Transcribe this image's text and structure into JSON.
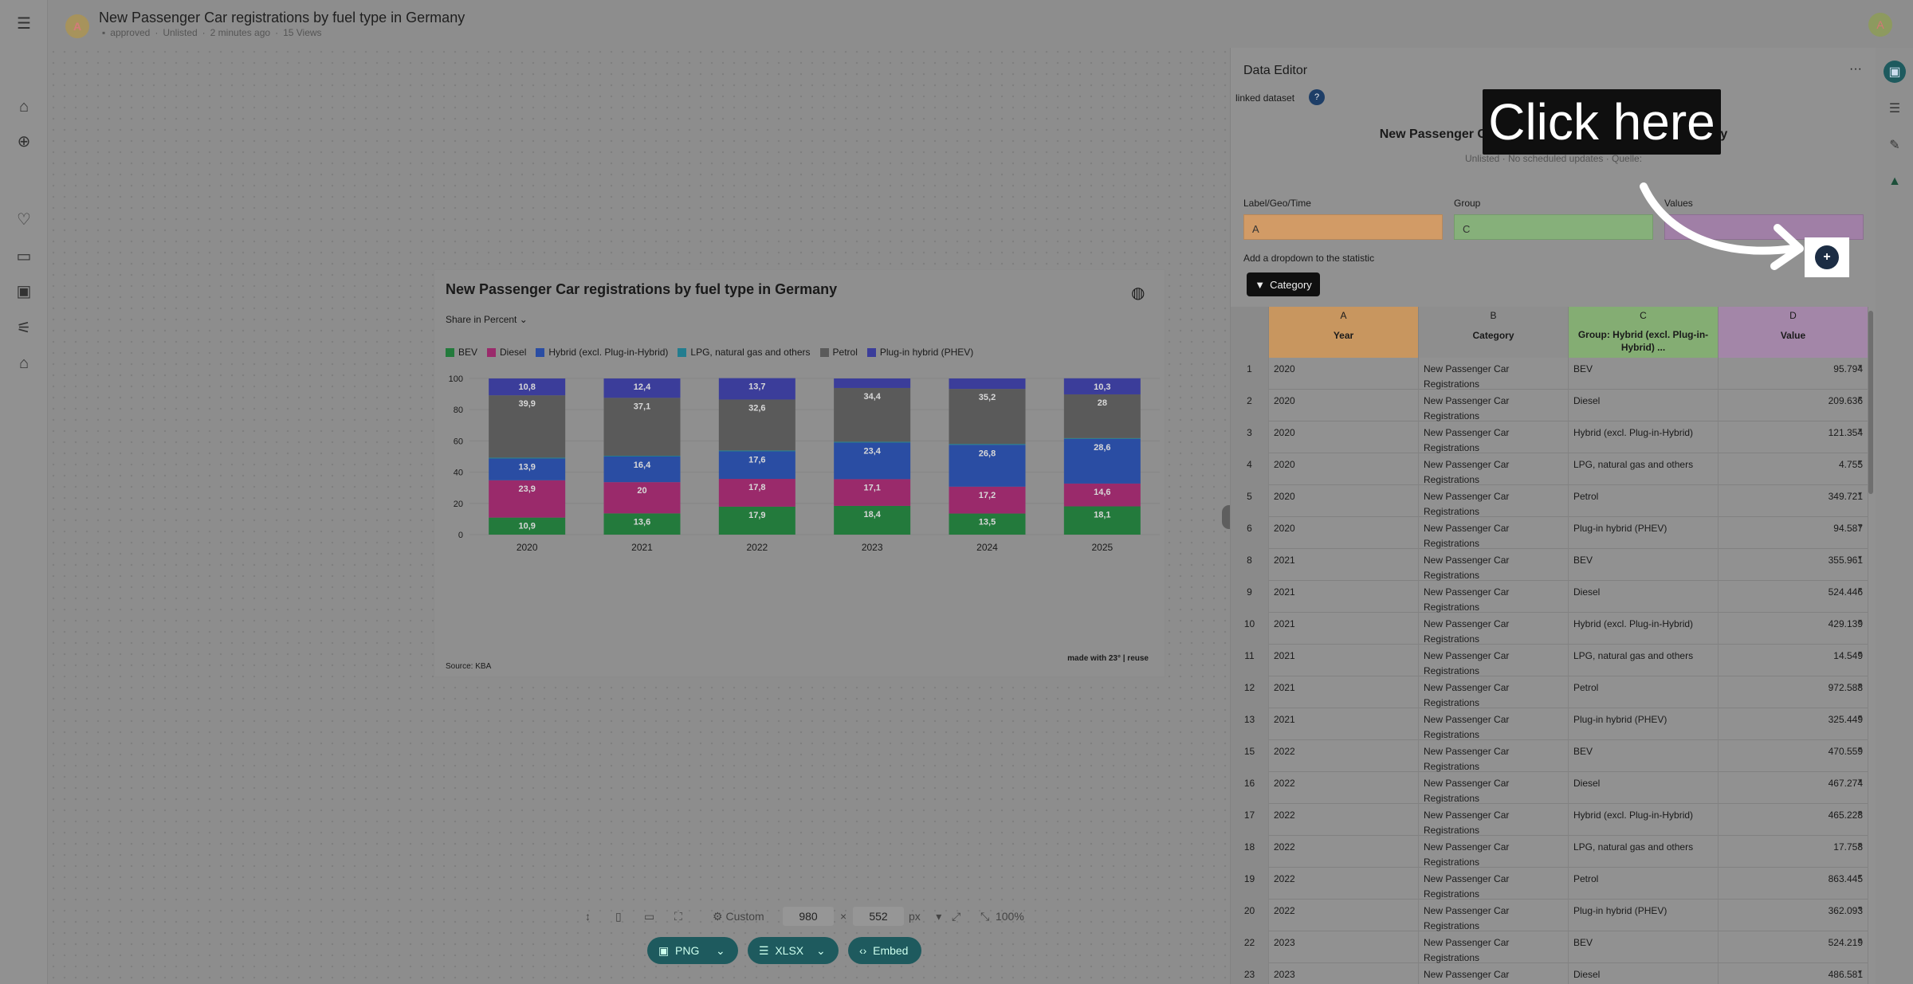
{
  "app": {
    "title": "New Passenger Car registrations by fuel type in Germany",
    "status": "approved",
    "visibility": "Unlisted",
    "updated": "2 minutes ago",
    "views": "15 Views",
    "avatar_letter": "A",
    "user_avatar_letter": "A"
  },
  "chart": {
    "title": "New Passenger Car registrations by fuel type in Germany",
    "display_select": "Share in Percent",
    "source": "Source: KBA",
    "made_with": "made with 23° | reuse"
  },
  "chart_data": {
    "type": "bar",
    "stacked": true,
    "categories": [
      "2020",
      "2021",
      "2022",
      "2023",
      "2024",
      "2025"
    ],
    "ylim": [
      0,
      100
    ],
    "yticks": [
      "0",
      "20",
      "40",
      "60",
      "80",
      "100"
    ],
    "legend_position": "top-left",
    "series": [
      {
        "name": "BEV",
        "color": "#237a3c",
        "values": [
          10.9,
          13.6,
          17.9,
          18.4,
          13.5,
          18.1
        ],
        "labels": [
          "10,9",
          "13,6",
          "17,9",
          "18,4",
          "13,5",
          "18,1"
        ]
      },
      {
        "name": "Diesel",
        "color": "#9a2a6b",
        "values": [
          23.9,
          20,
          17.8,
          17.1,
          17.2,
          14.6
        ],
        "labels": [
          "23,9",
          "20",
          "17,8",
          "17,1",
          "17,2",
          "14,6"
        ]
      },
      {
        "name": "Hybrid (excl. Plug-in-Hybrid)",
        "color": "#2a4da3",
        "values": [
          13.9,
          16.4,
          17.6,
          23.4,
          26.8,
          28.6
        ],
        "labels": [
          "13,9",
          "16,4",
          "17,6",
          "23,4",
          "26,8",
          "28,6"
        ]
      },
      {
        "name": "LPG, natural gas and others",
        "color": "#237d8f",
        "values": [
          0.6,
          0.5,
          0.6,
          0.6,
          0.6,
          0.5
        ],
        "labels": [
          "",
          "",
          "",
          "",
          "",
          ""
        ]
      },
      {
        "name": "Petrol",
        "color": "#5a5a5a",
        "values": [
          39.9,
          37.1,
          32.6,
          34.4,
          35.2,
          28
        ],
        "labels": [
          "39,9",
          "37,1",
          "32,6",
          "34,4",
          "35,2",
          "28"
        ]
      },
      {
        "name": "Plug-in hybrid (PHEV)",
        "color": "#3b3d9a",
        "values": [
          10.8,
          12.4,
          13.7,
          6.1,
          6.7,
          10.3
        ],
        "labels": [
          "10,8",
          "12,4",
          "13,7",
          "",
          "",
          "10,3"
        ]
      }
    ]
  },
  "toolbar": {
    "preset": "Custom",
    "width": "980",
    "times": "×",
    "height": "552",
    "unit": "px",
    "zoom": "100%",
    "export_png": "PNG",
    "export_xlsx": "XLSX",
    "embed": "Embed"
  },
  "editor": {
    "title": "Data Editor",
    "linked_label": "linked dataset",
    "help": "?",
    "dataset_title": "New Passenger Car registrations by fuel type in Germany",
    "dataset_sub": "Unlisted · No scheduled updates · Quelle:",
    "fields": [
      {
        "label": "Label/Geo/Time",
        "value": "A"
      },
      {
        "label": "Group",
        "value": "C"
      },
      {
        "label": "Values",
        "value": ""
      }
    ],
    "dropdown_label": "Add a dropdown to the statistic",
    "category_button": "Category",
    "col_letters": [
      "A",
      "B",
      "C",
      "D"
    ],
    "col_headers": [
      "Year",
      "Category",
      "Group: Hybrid (excl. Plug-in-Hybrid) ...",
      "Value"
    ],
    "rows": [
      {
        "n": "1",
        "year": "2020",
        "cat": "New Passenger Car Registrations",
        "group": "BEV",
        "value": "95.794"
      },
      {
        "n": "2",
        "year": "2020",
        "cat": "New Passenger Car Registrations",
        "group": "Diesel",
        "value": "209.636"
      },
      {
        "n": "3",
        "year": "2020",
        "cat": "New Passenger Car Registrations",
        "group": "Hybrid (excl. Plug-in-Hybrid)",
        "value": "121.354"
      },
      {
        "n": "4",
        "year": "2020",
        "cat": "New Passenger Car Registrations",
        "group": "LPG, natural gas and others",
        "value": "4.755"
      },
      {
        "n": "5",
        "year": "2020",
        "cat": "New Passenger Car Registrations",
        "group": "Petrol",
        "value": "349.721"
      },
      {
        "n": "6",
        "year": "2020",
        "cat": "New Passenger Car Registrations",
        "group": "Plug-in hybrid (PHEV)",
        "value": "94.587"
      },
      {
        "n": "8",
        "year": "2021",
        "cat": "New Passenger Car Registrations",
        "group": "BEV",
        "value": "355.961"
      },
      {
        "n": "9",
        "year": "2021",
        "cat": "New Passenger Car Registrations",
        "group": "Diesel",
        "value": "524.446"
      },
      {
        "n": "10",
        "year": "2021",
        "cat": "New Passenger Car Registrations",
        "group": "Hybrid (excl. Plug-in-Hybrid)",
        "value": "429.139"
      },
      {
        "n": "11",
        "year": "2021",
        "cat": "New Passenger Car Registrations",
        "group": "LPG, natural gas and others",
        "value": "14.549"
      },
      {
        "n": "12",
        "year": "2021",
        "cat": "New Passenger Car Registrations",
        "group": "Petrol",
        "value": "972.588"
      },
      {
        "n": "13",
        "year": "2021",
        "cat": "New Passenger Car Registrations",
        "group": "Plug-in hybrid (PHEV)",
        "value": "325.449"
      },
      {
        "n": "15",
        "year": "2022",
        "cat": "New Passenger Car Registrations",
        "group": "BEV",
        "value": "470.559"
      },
      {
        "n": "16",
        "year": "2022",
        "cat": "New Passenger Car Registrations",
        "group": "Diesel",
        "value": "467.274"
      },
      {
        "n": "17",
        "year": "2022",
        "cat": "New Passenger Car Registrations",
        "group": "Hybrid (excl. Plug-in-Hybrid)",
        "value": "465.228"
      },
      {
        "n": "18",
        "year": "2022",
        "cat": "New Passenger Car Registrations",
        "group": "LPG, natural gas and others",
        "value": "17.758"
      },
      {
        "n": "19",
        "year": "2022",
        "cat": "New Passenger Car Registrations",
        "group": "Petrol",
        "value": "863.445"
      },
      {
        "n": "20",
        "year": "2022",
        "cat": "New Passenger Car Registrations",
        "group": "Plug-in hybrid (PHEV)",
        "value": "362.093"
      },
      {
        "n": "22",
        "year": "2023",
        "cat": "New Passenger Car Registrations",
        "group": "BEV",
        "value": "524.219"
      },
      {
        "n": "23",
        "year": "2023",
        "cat": "New Passenger Car Registrations",
        "group": "Diesel",
        "value": "486.581"
      }
    ]
  },
  "callout": {
    "text": "Click here",
    "plus": "+"
  },
  "colors": {
    "label_field": "#d29b66",
    "group_field": "#86b07a",
    "values_field": "#a07fa6",
    "year_col": "#c8965f",
    "group_col": "#84ad73",
    "value_col": "#a386a8",
    "accent": "#1e5a5e"
  },
  "icons": {
    "rail": [
      "menu-icon",
      "home-icon",
      "plus-circle-icon",
      "heart-icon",
      "folder-icon",
      "image-icon",
      "sliders-icon",
      "graduation-cap-icon"
    ],
    "right_rail": [
      "save-icon",
      "database-icon",
      "pencil-icon",
      "logo-icon"
    ]
  }
}
